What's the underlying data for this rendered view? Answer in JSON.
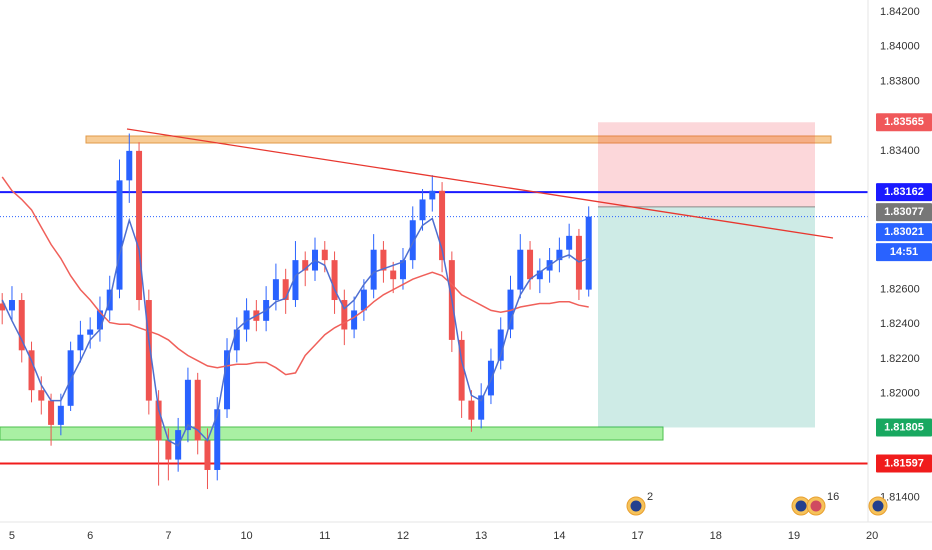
{
  "chart_data": {
    "type": "candlestick",
    "x": [
      0,
      1,
      2,
      3,
      4,
      5,
      6,
      7,
      8,
      9,
      10,
      11,
      12,
      13,
      14,
      15,
      16,
      17,
      18,
      19,
      20,
      21,
      22,
      23,
      24,
      25,
      26,
      27,
      28,
      29,
      30,
      31,
      32,
      33,
      34,
      35,
      36,
      37,
      38,
      39,
      40,
      41,
      42,
      43,
      44,
      45,
      46,
      47,
      48,
      49,
      50,
      51,
      52,
      53,
      54,
      55,
      56,
      57,
      58,
      59,
      60
    ],
    "open": [
      1.8252,
      1.8248,
      1.8254,
      1.8225,
      1.8202,
      1.8196,
      1.8182,
      1.8193,
      1.8225,
      1.8234,
      1.8237,
      1.8248,
      1.826,
      1.8323,
      1.834,
      1.8254,
      1.8196,
      1.8173,
      1.8162,
      1.8179,
      1.8208,
      1.8173,
      1.8156,
      1.8191,
      1.8225,
      1.8237,
      1.8248,
      1.8242,
      1.8254,
      1.8266,
      1.8254,
      1.8277,
      1.8271,
      1.8283,
      1.8277,
      1.8254,
      1.8237,
      1.8248,
      1.826,
      1.8283,
      1.8271,
      1.8266,
      1.8277,
      1.83,
      1.8312,
      1.8317,
      1.8277,
      1.8231,
      1.8196,
      1.8185,
      1.8199,
      1.8219,
      1.8237,
      1.826,
      1.8283,
      1.8266,
      1.8271,
      1.8277,
      1.8283,
      1.8291,
      1.826
    ],
    "high": [
      1.8258,
      1.8262,
      1.8258,
      1.823,
      1.821,
      1.82,
      1.82,
      1.823,
      1.8242,
      1.8244,
      1.8256,
      1.8268,
      1.8335,
      1.835,
      1.8345,
      1.826,
      1.8202,
      1.818,
      1.8186,
      1.8215,
      1.8212,
      1.818,
      1.8198,
      1.8232,
      1.8244,
      1.8255,
      1.8254,
      1.8262,
      1.8275,
      1.8272,
      1.8288,
      1.8282,
      1.829,
      1.8288,
      1.8282,
      1.826,
      1.8256,
      1.8266,
      1.8292,
      1.8288,
      1.8276,
      1.8284,
      1.8308,
      1.8318,
      1.8326,
      1.8322,
      1.8282,
      1.8236,
      1.8202,
      1.8206,
      1.8226,
      1.8244,
      1.8268,
      1.8292,
      1.8288,
      1.8278,
      1.8284,
      1.829,
      1.8298,
      1.8295,
      1.8308
    ],
    "low": [
      1.824,
      1.8242,
      1.8218,
      1.8195,
      1.8188,
      1.817,
      1.8176,
      1.819,
      1.8218,
      1.8226,
      1.823,
      1.8242,
      1.8255,
      1.831,
      1.8248,
      1.8188,
      1.8147,
      1.815,
      1.8155,
      1.8172,
      1.8165,
      1.8145,
      1.815,
      1.8186,
      1.8218,
      1.823,
      1.8236,
      1.8236,
      1.8248,
      1.8246,
      1.825,
      1.8262,
      1.8265,
      1.827,
      1.8246,
      1.8228,
      1.8232,
      1.8242,
      1.8255,
      1.8264,
      1.8258,
      1.826,
      1.8272,
      1.8294,
      1.8305,
      1.827,
      1.8224,
      1.8186,
      1.8178,
      1.818,
      1.8194,
      1.8214,
      1.8232,
      1.8255,
      1.826,
      1.8258,
      1.8264,
      1.827,
      1.8278,
      1.8254,
      1.8256
    ],
    "close": [
      1.8248,
      1.8254,
      1.8225,
      1.8202,
      1.8196,
      1.8182,
      1.8193,
      1.8225,
      1.8234,
      1.8237,
      1.8248,
      1.826,
      1.8323,
      1.834,
      1.8254,
      1.8196,
      1.8173,
      1.8162,
      1.8179,
      1.8208,
      1.8173,
      1.8156,
      1.8191,
      1.8225,
      1.8237,
      1.8248,
      1.8242,
      1.8254,
      1.8266,
      1.8254,
      1.8277,
      1.8271,
      1.8283,
      1.8277,
      1.8254,
      1.8237,
      1.8248,
      1.826,
      1.8283,
      1.8271,
      1.8266,
      1.8277,
      1.83,
      1.8312,
      1.8317,
      1.8277,
      1.8231,
      1.8196,
      1.8185,
      1.8199,
      1.8219,
      1.8237,
      1.826,
      1.8283,
      1.8266,
      1.8271,
      1.8277,
      1.8283,
      1.8291,
      1.826,
      1.83021
    ],
    "up_color": "#2962ff",
    "down_color": "#ef5350",
    "series": [
      {
        "color": "#f0605a",
        "values": [
          1.8325,
          1.8317,
          1.8312,
          1.8306,
          1.8296,
          1.8286,
          1.8278,
          1.8268,
          1.826,
          1.8254,
          1.8247,
          1.8241,
          1.824,
          1.824,
          1.8238,
          1.8236,
          1.8234,
          1.8231,
          1.8226,
          1.8222,
          1.8219,
          1.8216,
          1.8215,
          1.8216,
          1.8217,
          1.8217,
          1.8218,
          1.8218,
          1.8215,
          1.8211,
          1.8212,
          1.8222,
          1.8228,
          1.8234,
          1.8238,
          1.8241,
          1.8244,
          1.8248,
          1.8253,
          1.8257,
          1.826,
          1.8263,
          1.8266,
          1.8268,
          1.827,
          1.8268,
          1.8263,
          1.8257,
          1.8254,
          1.8251,
          1.8248,
          1.8247,
          1.8248,
          1.825,
          1.8251,
          1.8252,
          1.8252,
          1.8253,
          1.8253,
          1.8251,
          1.825
        ]
      },
      {
        "color": "#4f6fd0",
        "values": [
          1.8254,
          1.8242,
          1.8231,
          1.8219,
          1.8205,
          1.8196,
          1.8196,
          1.8208,
          1.8219,
          1.8231,
          1.8237,
          1.8254,
          1.828,
          1.83,
          1.8283,
          1.8231,
          1.8191,
          1.8173,
          1.817,
          1.8182,
          1.8179,
          1.8173,
          1.8188,
          1.8219,
          1.8237,
          1.8242,
          1.8245,
          1.8248,
          1.8253,
          1.8255,
          1.8268,
          1.8272,
          1.8277,
          1.8274,
          1.826,
          1.8249,
          1.8254,
          1.8263,
          1.827,
          1.8272,
          1.8274,
          1.8276,
          1.8287,
          1.8297,
          1.8301,
          1.8283,
          1.8254,
          1.8219,
          1.8199,
          1.8196,
          1.8208,
          1.8222,
          1.8242,
          1.8257,
          1.8266,
          1.827,
          1.8274,
          1.8278,
          1.828,
          1.8276,
          1.8278
        ]
      }
    ],
    "xlim": [
      -0.225,
      89.8
    ],
    "ylim": [
      1.8126,
      1.8427
    ],
    "xticks": [
      {
        "value": 1,
        "label": "5"
      },
      {
        "value": 9,
        "label": "6"
      },
      {
        "value": 17,
        "label": "7"
      },
      {
        "value": 25,
        "label": "10"
      },
      {
        "value": 33,
        "label": "11"
      },
      {
        "value": 41,
        "label": "12"
      },
      {
        "value": 49,
        "label": "13"
      },
      {
        "value": 57,
        "label": "14"
      },
      {
        "value": 65,
        "label": "17"
      },
      {
        "value": 73,
        "label": "18"
      },
      {
        "value": 81,
        "label": "19"
      },
      {
        "value": 89,
        "label": "20"
      }
    ],
    "yticks": [
      {
        "value": 1.842,
        "label": "1.84200"
      },
      {
        "value": 1.84,
        "label": "1.84000"
      },
      {
        "value": 1.838,
        "label": "1.83800"
      },
      {
        "value": 1.834,
        "label": "1.83400"
      },
      {
        "value": 1.826,
        "label": "1.82600"
      },
      {
        "value": 1.824,
        "label": "1.82400"
      },
      {
        "value": 1.822,
        "label": "1.82200"
      },
      {
        "value": 1.82,
        "label": "1.82000"
      },
      {
        "value": 1.814,
        "label": "1.81400"
      }
    ],
    "price_lines": [
      {
        "value": 1.83162,
        "label": "1.83162",
        "color": "#1a1aff"
      },
      {
        "value": 1.81597,
        "label": "1.81597",
        "color": "#f01c1c"
      }
    ],
    "position": {
      "stop": {
        "value": 1.83565,
        "label": "1.83565",
        "color": "#f0585a"
      },
      "entry": {
        "value": 1.83077,
        "label": "1.83077",
        "color": "#777777"
      },
      "target": {
        "value": 1.81805,
        "label": "1.81805",
        "color": "#18a860"
      }
    },
    "last_price": {
      "value": 1.83021,
      "label": "1.83021",
      "color": "#2962ff"
    },
    "countdown": "14:51",
    "events": [
      "2",
      "16"
    ]
  }
}
